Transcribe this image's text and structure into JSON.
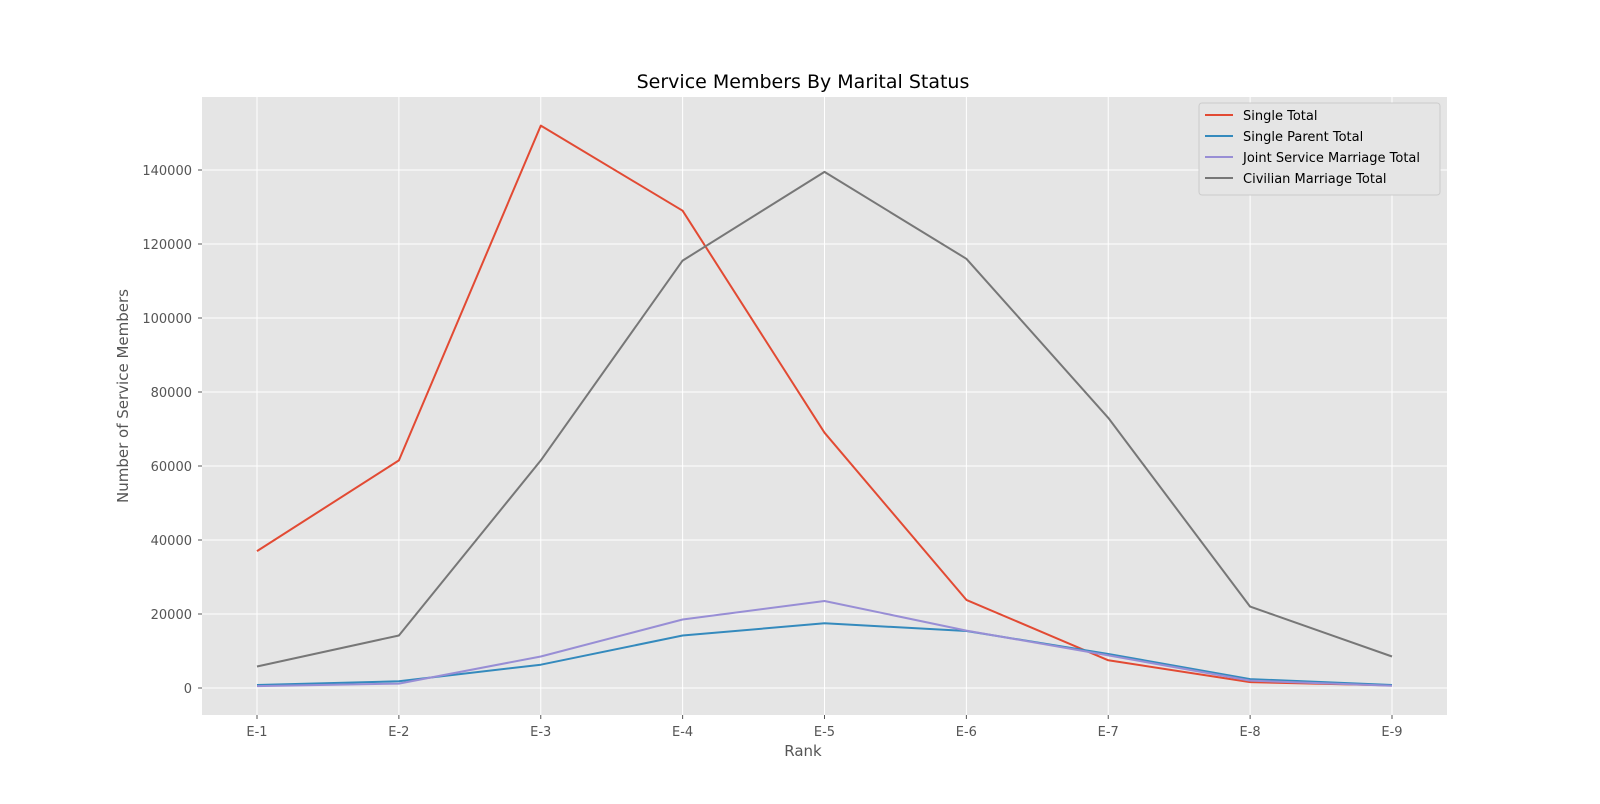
{
  "chart_data": {
    "type": "line",
    "title": "Service Members By Marital Status",
    "xlabel": "Rank",
    "ylabel": "Number of Service Members",
    "categories": [
      "E-1",
      "E-2",
      "E-3",
      "E-4",
      "E-5",
      "E-6",
      "E-7",
      "E-8",
      "E-9"
    ],
    "ylim": [
      -7000,
      160000
    ],
    "yticks": [
      0,
      20000,
      40000,
      60000,
      80000,
      100000,
      120000,
      140000
    ],
    "grid": true,
    "legend_position": "top-right",
    "series": [
      {
        "name": "Single Total",
        "color": "#E24A33",
        "values": [
          37000,
          61500,
          152000,
          129000,
          69000,
          23800,
          7500,
          1600,
          700
        ]
      },
      {
        "name": "Single Parent Total",
        "color": "#348ABD",
        "values": [
          800,
          1800,
          6300,
          14200,
          17500,
          15400,
          9200,
          2400,
          800
        ]
      },
      {
        "name": "Joint Service Marriage Total",
        "color": "#988ED5",
        "values": [
          500,
          1200,
          8500,
          18500,
          23500,
          15500,
          8800,
          2000,
          600
        ]
      },
      {
        "name": "Civilian Marriage Total",
        "color": "#777777",
        "values": [
          5800,
          14200,
          61500,
          115500,
          139500,
          116000,
          73000,
          22000,
          8500
        ]
      }
    ]
  },
  "colors": {
    "plot_background": "#E5E5E5",
    "grid": "#FFFFFF",
    "tick_label": "#555555",
    "title": "#000000"
  }
}
